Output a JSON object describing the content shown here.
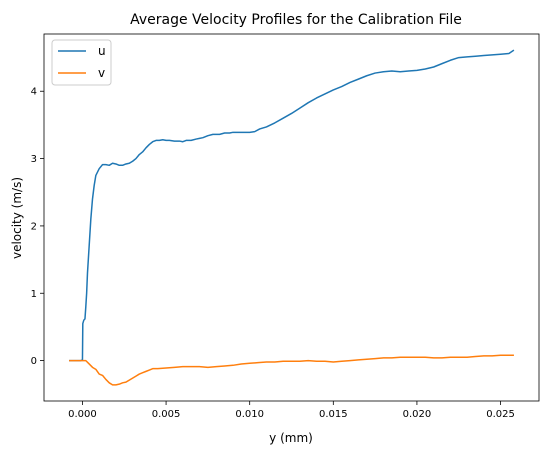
{
  "chart_data": {
    "type": "line",
    "title": "Average Velocity Profiles for the Calibration File",
    "xlabel": "y (mm)",
    "ylabel": "velocity (m/s)",
    "xlim": [
      -0.0023,
      0.0273
    ],
    "ylim": [
      -0.6,
      4.85
    ],
    "xticks": [
      0.0,
      0.005,
      0.01,
      0.015,
      0.02,
      0.025
    ],
    "xtick_labels": [
      "0.000",
      "0.005",
      "0.010",
      "0.015",
      "0.020",
      "0.025"
    ],
    "yticks": [
      0,
      1,
      2,
      3,
      4
    ],
    "ytick_labels": [
      "0",
      "1",
      "2",
      "3",
      "4"
    ],
    "grid": false,
    "legend_position": "top-left",
    "series": [
      {
        "name": "u",
        "color": "#1f77b4",
        "points": [
          [
            -0.0008,
            0.0
          ],
          [
            -0.0001,
            0.0
          ],
          [
            0.0,
            0.01
          ],
          [
            2e-05,
            0.55
          ],
          [
            8e-05,
            0.6
          ],
          [
            0.00015,
            0.62
          ],
          [
            0.0002,
            0.8
          ],
          [
            0.00025,
            1.0
          ],
          [
            0.0003,
            1.3
          ],
          [
            0.0004,
            1.7
          ],
          [
            0.0005,
            2.1
          ],
          [
            0.0006,
            2.4
          ],
          [
            0.0007,
            2.6
          ],
          [
            0.0008,
            2.75
          ],
          [
            0.0009,
            2.8
          ],
          [
            0.001,
            2.85
          ],
          [
            0.0012,
            2.91
          ],
          [
            0.0014,
            2.91
          ],
          [
            0.0016,
            2.9
          ],
          [
            0.0018,
            2.93
          ],
          [
            0.002,
            2.92
          ],
          [
            0.0022,
            2.9
          ],
          [
            0.0024,
            2.9
          ],
          [
            0.0026,
            2.92
          ],
          [
            0.0028,
            2.93
          ],
          [
            0.003,
            2.96
          ],
          [
            0.0032,
            3.0
          ],
          [
            0.0034,
            3.06
          ],
          [
            0.0036,
            3.1
          ],
          [
            0.0038,
            3.16
          ],
          [
            0.004,
            3.21
          ],
          [
            0.0042,
            3.25
          ],
          [
            0.0044,
            3.27
          ],
          [
            0.0046,
            3.27
          ],
          [
            0.0048,
            3.28
          ],
          [
            0.005,
            3.27
          ],
          [
            0.0052,
            3.27
          ],
          [
            0.0055,
            3.26
          ],
          [
            0.0058,
            3.26
          ],
          [
            0.006,
            3.25
          ],
          [
            0.0062,
            3.27
          ],
          [
            0.0065,
            3.27
          ],
          [
            0.0068,
            3.29
          ],
          [
            0.007,
            3.3
          ],
          [
            0.0072,
            3.31
          ],
          [
            0.0075,
            3.34
          ],
          [
            0.0078,
            3.36
          ],
          [
            0.008,
            3.36
          ],
          [
            0.0082,
            3.36
          ],
          [
            0.0085,
            3.38
          ],
          [
            0.0088,
            3.38
          ],
          [
            0.009,
            3.39
          ],
          [
            0.0095,
            3.39
          ],
          [
            0.01,
            3.39
          ],
          [
            0.0103,
            3.4
          ],
          [
            0.0106,
            3.44
          ],
          [
            0.011,
            3.47
          ],
          [
            0.0115,
            3.53
          ],
          [
            0.012,
            3.6
          ],
          [
            0.0125,
            3.67
          ],
          [
            0.013,
            3.75
          ],
          [
            0.0135,
            3.83
          ],
          [
            0.014,
            3.9
          ],
          [
            0.0145,
            3.96
          ],
          [
            0.015,
            4.02
          ],
          [
            0.0155,
            4.07
          ],
          [
            0.016,
            4.13
          ],
          [
            0.0165,
            4.18
          ],
          [
            0.017,
            4.23
          ],
          [
            0.0175,
            4.27
          ],
          [
            0.018,
            4.29
          ],
          [
            0.0185,
            4.3
          ],
          [
            0.019,
            4.29
          ],
          [
            0.0195,
            4.3
          ],
          [
            0.02,
            4.31
          ],
          [
            0.0205,
            4.33
          ],
          [
            0.021,
            4.36
          ],
          [
            0.0215,
            4.41
          ],
          [
            0.022,
            4.46
          ],
          [
            0.0225,
            4.5
          ],
          [
            0.023,
            4.51
          ],
          [
            0.0235,
            4.52
          ],
          [
            0.024,
            4.53
          ],
          [
            0.0245,
            4.54
          ],
          [
            0.025,
            4.55
          ],
          [
            0.0255,
            4.56
          ],
          [
            0.0258,
            4.61
          ]
        ]
      },
      {
        "name": "v",
        "color": "#ff7f0e",
        "points": [
          [
            -0.0008,
            0.0
          ],
          [
            -0.0003,
            0.0
          ],
          [
            0.0,
            0.0
          ],
          [
            0.0002,
            0.0
          ],
          [
            0.0004,
            -0.05
          ],
          [
            0.0006,
            -0.1
          ],
          [
            0.0008,
            -0.13
          ],
          [
            0.001,
            -0.2
          ],
          [
            0.0012,
            -0.22
          ],
          [
            0.0014,
            -0.28
          ],
          [
            0.0016,
            -0.33
          ],
          [
            0.0018,
            -0.36
          ],
          [
            0.002,
            -0.36
          ],
          [
            0.0022,
            -0.35
          ],
          [
            0.0024,
            -0.33
          ],
          [
            0.0026,
            -0.32
          ],
          [
            0.0028,
            -0.29
          ],
          [
            0.003,
            -0.26
          ],
          [
            0.0032,
            -0.23
          ],
          [
            0.0034,
            -0.2
          ],
          [
            0.0036,
            -0.18
          ],
          [
            0.0038,
            -0.16
          ],
          [
            0.004,
            -0.14
          ],
          [
            0.0042,
            -0.12
          ],
          [
            0.0045,
            -0.12
          ],
          [
            0.005,
            -0.11
          ],
          [
            0.0055,
            -0.1
          ],
          [
            0.006,
            -0.09
          ],
          [
            0.0065,
            -0.09
          ],
          [
            0.007,
            -0.09
          ],
          [
            0.0075,
            -0.1
          ],
          [
            0.008,
            -0.09
          ],
          [
            0.0085,
            -0.08
          ],
          [
            0.009,
            -0.07
          ],
          [
            0.0095,
            -0.05
          ],
          [
            0.01,
            -0.04
          ],
          [
            0.0105,
            -0.03
          ],
          [
            0.011,
            -0.02
          ],
          [
            0.0115,
            -0.02
          ],
          [
            0.012,
            -0.01
          ],
          [
            0.0125,
            -0.01
          ],
          [
            0.013,
            -0.01
          ],
          [
            0.0135,
            0.0
          ],
          [
            0.014,
            -0.01
          ],
          [
            0.0145,
            -0.01
          ],
          [
            0.015,
            -0.02
          ],
          [
            0.0155,
            -0.01
          ],
          [
            0.016,
            0.0
          ],
          [
            0.0165,
            0.01
          ],
          [
            0.017,
            0.02
          ],
          [
            0.0175,
            0.03
          ],
          [
            0.018,
            0.04
          ],
          [
            0.0185,
            0.04
          ],
          [
            0.019,
            0.05
          ],
          [
            0.0195,
            0.05
          ],
          [
            0.02,
            0.05
          ],
          [
            0.0205,
            0.05
          ],
          [
            0.021,
            0.04
          ],
          [
            0.0215,
            0.04
          ],
          [
            0.022,
            0.05
          ],
          [
            0.0225,
            0.05
          ],
          [
            0.023,
            0.05
          ],
          [
            0.0235,
            0.06
          ],
          [
            0.024,
            0.07
          ],
          [
            0.0245,
            0.07
          ],
          [
            0.025,
            0.08
          ],
          [
            0.0255,
            0.08
          ],
          [
            0.0258,
            0.08
          ]
        ]
      }
    ]
  }
}
